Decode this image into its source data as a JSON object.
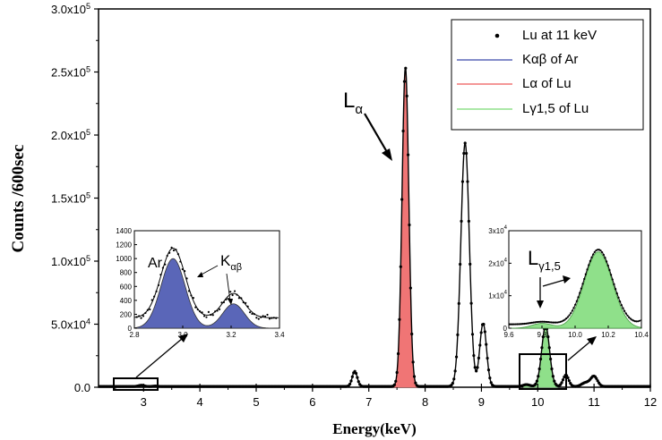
{
  "chart_data": {
    "type": "scatter",
    "xlabel": "Energy(keV)",
    "ylabel": "Counts /600sec",
    "xlim": [
      2.2,
      12
    ],
    "ylim": [
      0,
      300000
    ],
    "x_ticks": [
      "3",
      "4",
      "5",
      "6",
      "7",
      "8",
      "9",
      "10",
      "11",
      "12"
    ],
    "y_ticks": [
      {
        "value": 0,
        "m": "0.0",
        "e": ""
      },
      {
        "value": 50000,
        "m": "5.0x10",
        "e": "4"
      },
      {
        "value": 100000,
        "m": "1.0x10",
        "e": "5"
      },
      {
        "value": 150000,
        "m": "1.5x10",
        "e": "5"
      },
      {
        "value": 200000,
        "m": "2.0x10",
        "e": "5"
      },
      {
        "value": 250000,
        "m": "2.5x10",
        "e": "5"
      },
      {
        "value": 300000,
        "m": "3.0x10",
        "e": "5"
      }
    ],
    "series": [
      {
        "name": "Lu at 11 keV",
        "style": "dots",
        "color": "#000000"
      },
      {
        "name": "Kαβ of Ar",
        "style": "fill",
        "color": "#5a66b8"
      },
      {
        "name": "Lα of Lu",
        "style": "fill",
        "color": "#f07575"
      },
      {
        "name": "Lγ1,5 of Lu",
        "style": "fill",
        "color": "#8fe08a"
      }
    ],
    "legend_placement": "top-right",
    "peaks": [
      {
        "center": 2.96,
        "height": 1000,
        "width": 0.05,
        "series": "Kαβ of Ar"
      },
      {
        "center": 3.21,
        "height": 350,
        "width": 0.045,
        "series": "Kαβ of Ar"
      },
      {
        "center": 6.75,
        "height": 12000,
        "width": 0.045,
        "series": "Lu at 11 keV"
      },
      {
        "center": 7.65,
        "height": 253000,
        "width": 0.06,
        "series": "Lα of Lu"
      },
      {
        "center": 8.71,
        "height": 193000,
        "width": 0.075,
        "series": "Lu at 11 keV"
      },
      {
        "center": 9.03,
        "height": 50000,
        "width": 0.06,
        "series": "Lu at 11 keV"
      },
      {
        "center": 9.8,
        "height": 1500,
        "width": 0.06,
        "series": "Lγ1,5 of Lu"
      },
      {
        "center": 10.14,
        "height": 48000,
        "width": 0.07,
        "series": "Lγ1,5 of Lu"
      },
      {
        "center": 10.5,
        "height": 9000,
        "width": 0.05,
        "series": "Lu at 11 keV"
      },
      {
        "center": 11.0,
        "height": 8000,
        "width": 0.06,
        "series": "Lu at 11 keV"
      },
      {
        "center": 10.85,
        "height": 3000,
        "width": 0.07,
        "series": "Lu at 11 keV"
      }
    ],
    "annotations": {
      "la_main": "L",
      "la_sub": "α",
      "inset_left_ar": "Ar",
      "inset_left_k": "K",
      "inset_left_k_sub": "αβ",
      "inset_right_l": "L",
      "inset_right_l_sub": "γ1,5"
    },
    "inset_left": {
      "xlim": [
        2.8,
        3.4
      ],
      "ylim": [
        0,
        1400
      ],
      "x_ticks": [
        "2.8",
        "3.0",
        "3.2",
        "3.4"
      ],
      "y_ticks": [
        "0",
        "200",
        "400",
        "600",
        "800",
        "1000",
        "1200",
        "1400"
      ],
      "background": 150
    },
    "inset_right": {
      "xlim": [
        9.6,
        10.4
      ],
      "ylim": [
        0,
        30000
      ],
      "x_ticks": [
        "9.6",
        "9.8",
        "10.0",
        "10.2",
        "10.4"
      ],
      "y_ticks": [
        {
          "value": 0,
          "m": "0",
          "e": ""
        },
        {
          "value": 10000,
          "m": "1x10",
          "e": "4"
        },
        {
          "value": 20000,
          "m": "2x10",
          "e": "4"
        },
        {
          "value": 30000,
          "m": "3x10",
          "e": "4"
        }
      ]
    }
  }
}
